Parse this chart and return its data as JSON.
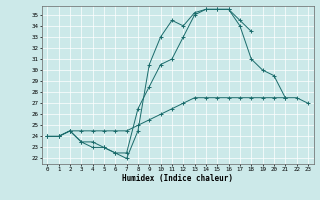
{
  "xlabel": "Humidex (Indice chaleur)",
  "ylabel": "",
  "xlim": [
    -0.5,
    23.5
  ],
  "ylim": [
    21.5,
    35.8
  ],
  "yticks": [
    22,
    23,
    24,
    25,
    26,
    27,
    28,
    29,
    30,
    31,
    32,
    33,
    34,
    35
  ],
  "xticks": [
    0,
    1,
    2,
    3,
    4,
    5,
    6,
    7,
    8,
    9,
    10,
    11,
    12,
    13,
    14,
    15,
    16,
    17,
    18,
    19,
    20,
    21,
    22,
    23
  ],
  "bg_color": "#cce9e9",
  "line_color": "#1a6b6b",
  "grid_color": "#ffffff",
  "curve1_x": [
    0,
    1,
    2,
    3,
    4,
    5,
    6,
    7,
    8,
    9,
    10,
    11,
    12,
    13,
    14,
    15,
    16,
    17,
    18
  ],
  "curve1_y": [
    24.0,
    24.0,
    24.5,
    23.5,
    23.0,
    23.0,
    22.5,
    22.0,
    24.5,
    30.5,
    33.0,
    34.5,
    34.0,
    35.2,
    35.5,
    35.5,
    35.5,
    34.5,
    33.5
  ],
  "curve2_x": [
    0,
    1,
    2,
    3,
    4,
    5,
    6,
    7,
    8,
    9,
    10,
    11,
    12,
    13,
    14,
    15,
    16,
    17,
    18,
    19,
    20,
    21,
    22,
    23
  ],
  "curve2_y": [
    24.0,
    24.0,
    24.5,
    23.5,
    23.5,
    23.0,
    22.5,
    22.5,
    26.5,
    28.5,
    30.5,
    31.0,
    33.0,
    35.0,
    35.5,
    35.5,
    35.5,
    34.0,
    31.0,
    30.0,
    29.5,
    27.5,
    null,
    null
  ],
  "curve3_x": [
    0,
    1,
    2,
    3,
    4,
    5,
    6,
    7,
    8,
    9,
    10,
    11,
    12,
    13,
    14,
    15,
    16,
    17,
    18,
    19,
    20,
    21,
    22,
    23
  ],
  "curve3_y": [
    24.0,
    24.0,
    24.5,
    24.5,
    24.5,
    24.5,
    24.5,
    24.5,
    25.0,
    25.5,
    26.0,
    26.5,
    27.0,
    27.5,
    27.5,
    27.5,
    27.5,
    27.5,
    27.5,
    27.5,
    27.5,
    27.5,
    27.5,
    27.0
  ]
}
